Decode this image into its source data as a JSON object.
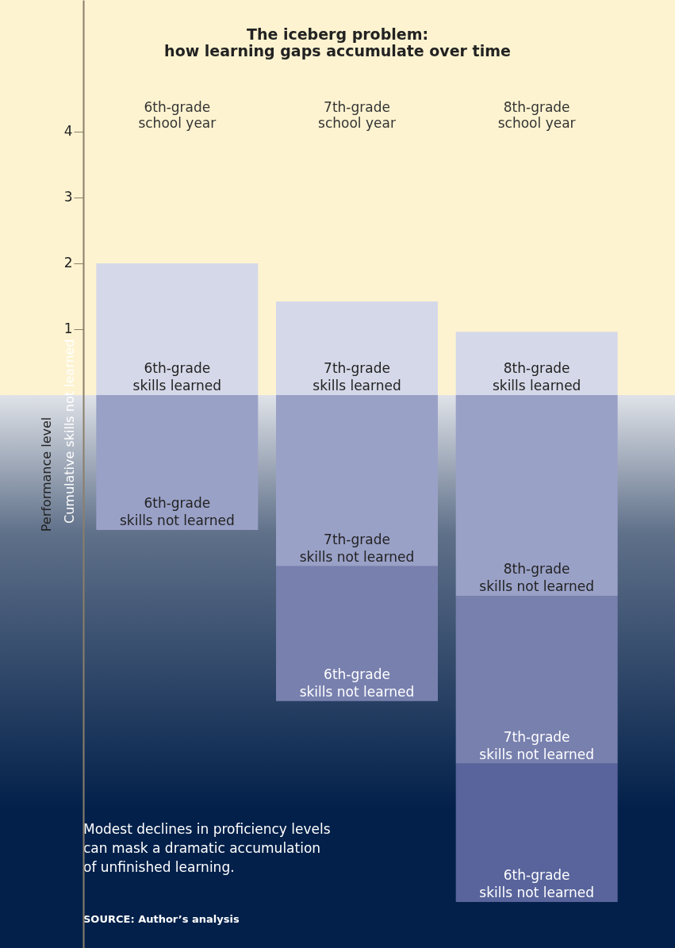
{
  "chart_data": {
    "type": "bar",
    "stacked": true,
    "title": "The iceberg problem:\nhow learning gaps accumulate over time",
    "categories": [
      "6th-grade\nschool year",
      "7th-grade\nschool year",
      "8th-grade\nschool year"
    ],
    "ylabel": "Performance level",
    "ylim": [
      -8.4,
      6.0
    ],
    "yticks": [
      1,
      2,
      3,
      4
    ],
    "series": [
      {
        "color": "#d5d8e8",
        "values": [
          2.0,
          1.42,
          0.96
        ]
      },
      {
        "color": "#9aa1c7",
        "values": [
          -2.05,
          -2.6,
          -3.05
        ]
      },
      {
        "color": "#7880ae",
        "values": [
          null,
          -2.05,
          -2.55
        ]
      },
      {
        "color": "#58649b",
        "values": [
          null,
          null,
          -2.1
        ]
      }
    ],
    "bands": [
      {
        "axis": "y",
        "from": 0,
        "to": 6.0,
        "color": "#fdf3d0"
      },
      {
        "axis": "y",
        "from": -8.4,
        "to": 0,
        "color": "#02204a"
      }
    ],
    "annotations": [
      "Cumulative skills not learned",
      "Modest declines in proficiency levels\ncan mask a dramatic accumulation\nof unfinished learning.",
      "SOURCE: Author’s analysis",
      "6th-grade\nskills learned",
      "7th-grade\nskills learned",
      "8th-grade\nskills learned",
      "6th-grade\nskills not learned",
      "7th-grade\nskills not learned",
      "8th-grade\nskills not learned",
      "6th-grade\nskills not learned",
      "7th-grade\nskills not learned",
      "6th-grade\nskills not learned"
    ]
  }
}
